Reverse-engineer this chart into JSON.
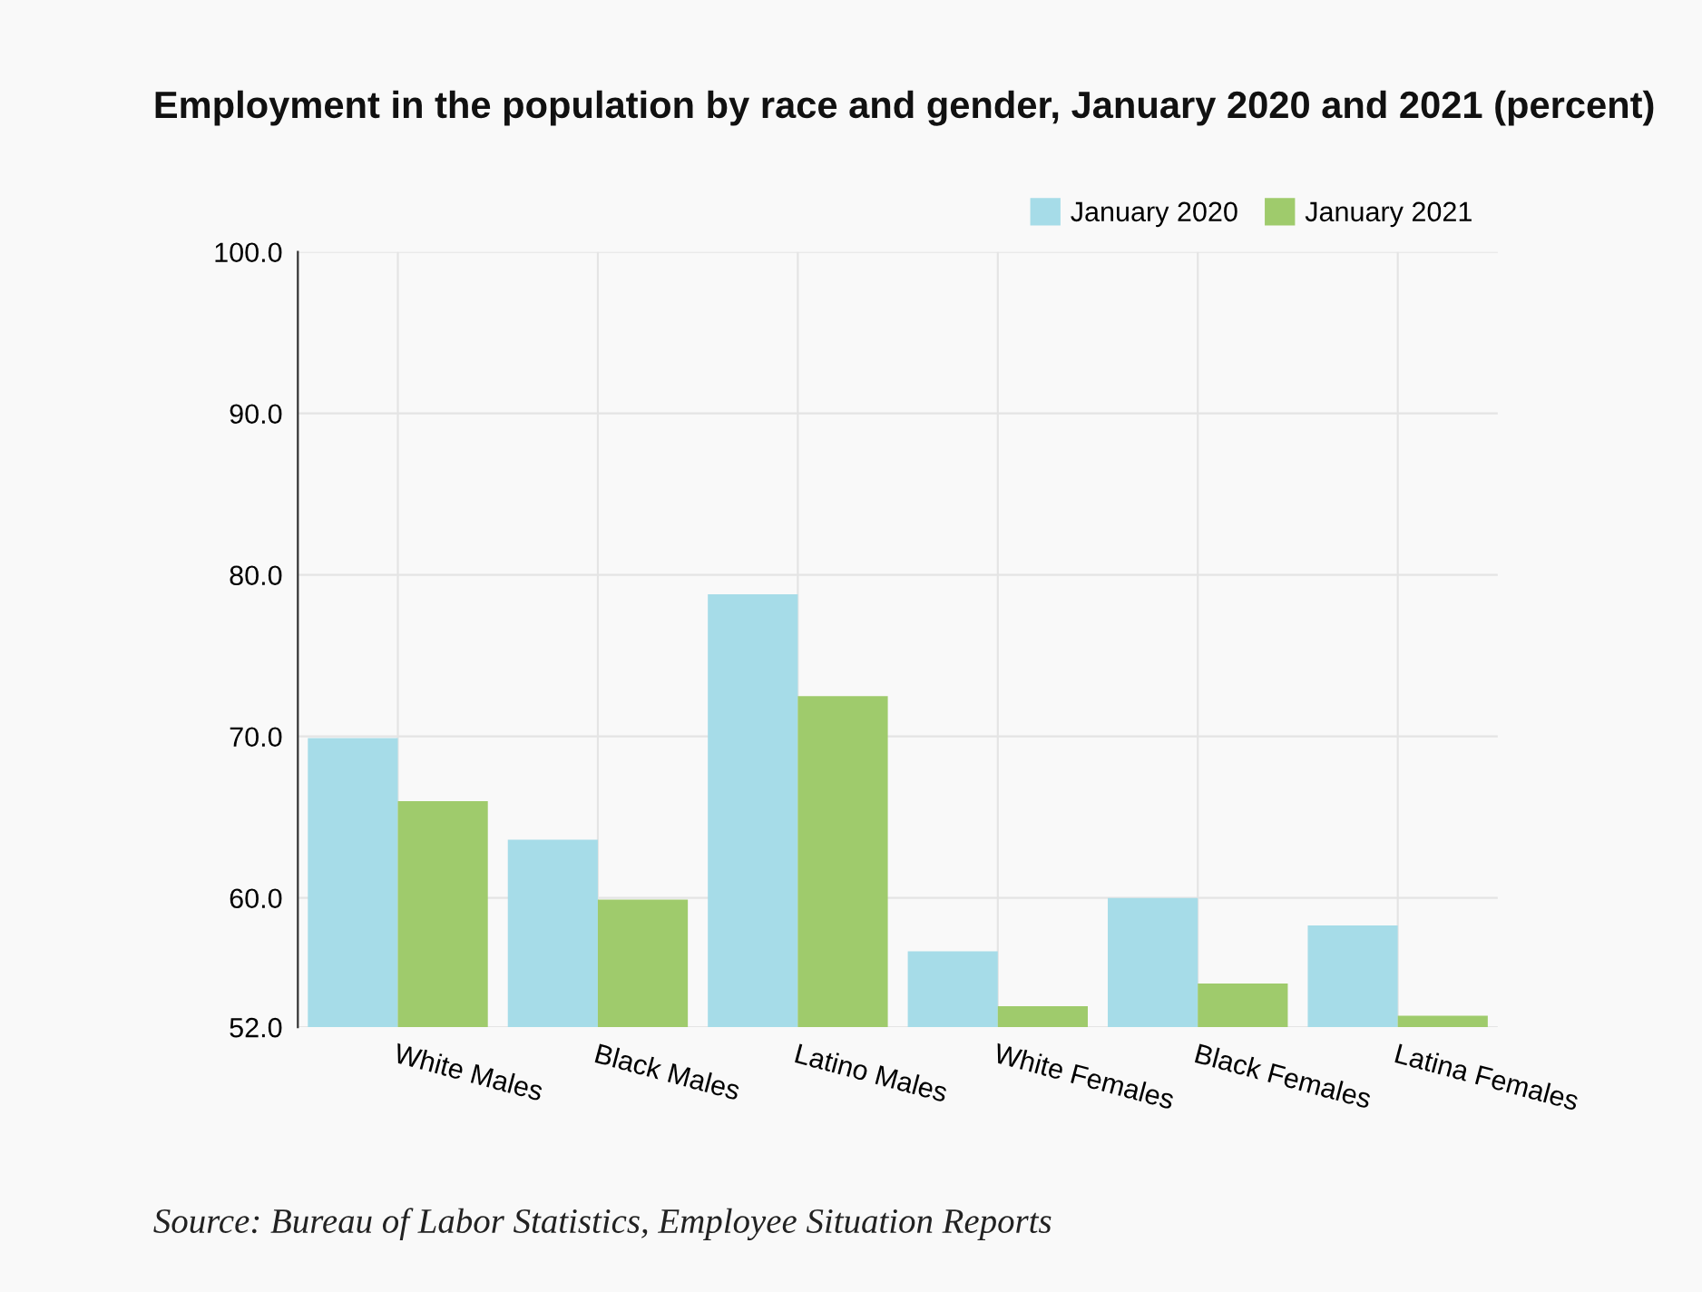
{
  "chart_data": {
    "type": "bar",
    "title": "Employment in the population by race and gender, January 2020 and 2021 (percent)",
    "categories": [
      "White Males",
      "Black Males",
      "Latino Males",
      "White Females",
      "Black Females",
      "Latina Females"
    ],
    "series": [
      {
        "name": "January 2020",
        "color": "#a6dce8",
        "values": [
          69.9,
          63.6,
          78.8,
          56.7,
          60.0,
          58.3
        ]
      },
      {
        "name": "January 2021",
        "color": "#9fcb6c",
        "values": [
          66.0,
          59.9,
          72.5,
          53.3,
          54.7,
          52.7
        ]
      }
    ],
    "ylim": [
      52,
      100
    ],
    "yticks": [
      {
        "value": 52,
        "label": "52.0"
      },
      {
        "value": 60,
        "label": "60.0"
      },
      {
        "value": 70,
        "label": "70.0"
      },
      {
        "value": 80,
        "label": "80.0"
      },
      {
        "value": 90,
        "label": "90.0"
      },
      {
        "value": 100,
        "label": "100.0"
      }
    ],
    "grid": true,
    "legend": "top right",
    "annotations": [
      "Source: Bureau of Labor Statistics, Employee Situation Reports"
    ]
  }
}
